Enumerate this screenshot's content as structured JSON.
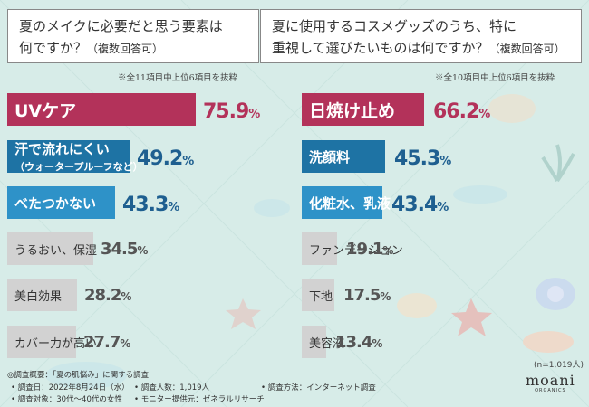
{
  "colors": {
    "background": "#d7ece8",
    "top_bar": "#b3325a",
    "second_bar": "#1e73a4",
    "third_bar": "#2e92c8",
    "other_bars": "#d2d2d2",
    "top_value": "#b3325a",
    "blue_value": "#1e5f90",
    "gray_value": "#555555"
  },
  "left": {
    "question_line1": "夏のメイクに必要だと思う要素は",
    "question_line2": "何ですか？",
    "question_suffix": "（複数回答可）",
    "note": "※全11項目中上位6項目を抜粋",
    "items": [
      {
        "label": "UVケア",
        "label2": "",
        "value": "75.9",
        "style": "crimson big",
        "valcolor": "pink"
      },
      {
        "label": "汗で流れにくい",
        "label2": "（ウォータープルーフなど）",
        "value": "49.2",
        "style": "blue mid",
        "valcolor": "navy"
      },
      {
        "label": "べたつかない",
        "label2": "",
        "value": "43.3",
        "style": "light mid",
        "valcolor": "navy"
      },
      {
        "label": "うるおい、保湿",
        "label2": "",
        "value": "34.5",
        "style": "grey small",
        "valcolor": "gray"
      },
      {
        "label": "美白効果",
        "label2": "",
        "value": "28.2",
        "style": "grey small",
        "valcolor": "gray"
      },
      {
        "label": "カバー力が高い",
        "label2": "",
        "value": "27.7",
        "style": "grey small",
        "valcolor": "gray"
      }
    ]
  },
  "right": {
    "question_line1": "夏に使用するコスメグッズのうち、特に",
    "question_line2": "重視して選びたいものは何ですか？",
    "question_suffix": "（複数回答可）",
    "note": "※全10項目中上位6項目を抜粋",
    "items": [
      {
        "label": "日焼け止め",
        "label2": "",
        "value": "66.2",
        "style": "crimson big",
        "valcolor": "pink"
      },
      {
        "label": "洗顔料",
        "label2": "",
        "value": "45.3",
        "style": "blue mid",
        "valcolor": "navy"
      },
      {
        "label": "化粧水、乳液",
        "label2": "",
        "value": "43.4",
        "style": "light mid",
        "valcolor": "navy"
      },
      {
        "label": "ファンデーション",
        "label2": "",
        "value": "19.1",
        "style": "grey small",
        "valcolor": "gray"
      },
      {
        "label": "下地",
        "label2": "",
        "value": "17.5",
        "style": "grey small",
        "valcolor": "gray"
      },
      {
        "label": "美容液",
        "label2": "",
        "value": "13.4",
        "style": "grey small",
        "valcolor": "gray"
      }
    ]
  },
  "chart_data": [
    {
      "type": "bar",
      "orientation": "horizontal",
      "title": "夏のメイクに必要だと思う要素は何ですか？（複数回答可）",
      "categories": [
        "UVケア",
        "汗で流れにくい（ウォータープルーフなど）",
        "べたつかない",
        "うるおい、保湿",
        "美白効果",
        "カバー力が高い"
      ],
      "values": [
        75.9,
        49.2,
        43.3,
        34.5,
        28.2,
        27.7
      ],
      "unit": "%"
    },
    {
      "type": "bar",
      "orientation": "horizontal",
      "title": "夏に使用するコスメグッズのうち、特に重視して選びたいものは何ですか？（複数回答可）",
      "categories": [
        "日焼け止め",
        "洗顔料",
        "化粧水、乳液",
        "ファンデーション",
        "下地",
        "美容液"
      ],
      "values": [
        66.2,
        45.3,
        43.4,
        19.1,
        17.5,
        13.4
      ],
      "unit": "%"
    }
  ],
  "pct_symbol": "%",
  "footer": {
    "line0": "◎調査概要：「夏の肌悩み」に関する調査",
    "date": "• 調査日：2022年8月24日（水）",
    "count": "• 調査人数：1,019人",
    "method": "• 調査方法：インターネット調査",
    "target": "• 調査対象：30代〜40代の女性",
    "monitor": "• モニター提供元：ゼネラルリサーチ"
  },
  "n_note": "(n=1,019人)",
  "logo": {
    "word": "moani",
    "sub": "ORGANICS"
  }
}
